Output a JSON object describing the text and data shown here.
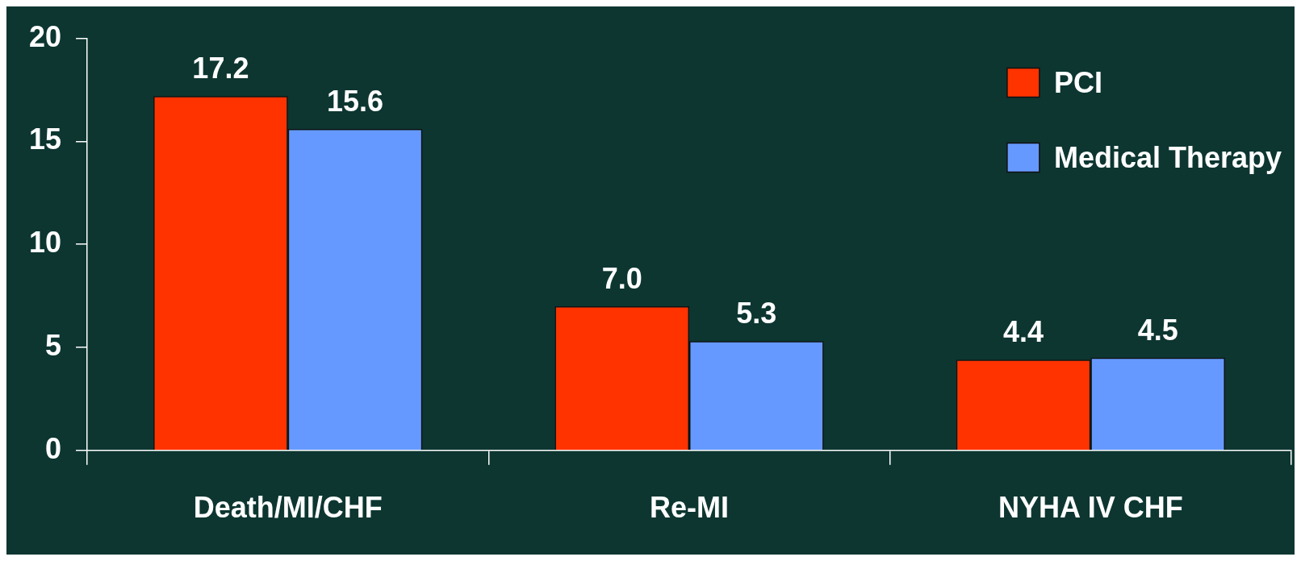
{
  "chart_data": {
    "type": "bar",
    "categories": [
      "Death/MI/CHF",
      "Re-MI",
      "NYHA IV CHF"
    ],
    "series": [
      {
        "name": "PCI",
        "color": "#ff3300",
        "values": [
          17.2,
          7.0,
          4.4
        ],
        "value_labels": [
          "17.2",
          "7.0",
          "4.4"
        ]
      },
      {
        "name": "Medical Therapy",
        "color": "#6699ff",
        "values": [
          15.6,
          5.3,
          4.5
        ],
        "value_labels": [
          "15.6",
          "5.3",
          "4.5"
        ]
      }
    ],
    "ylim": [
      0,
      20
    ],
    "yticks": [
      0,
      5,
      10,
      15,
      20
    ],
    "grid": false,
    "legend": "top right"
  }
}
